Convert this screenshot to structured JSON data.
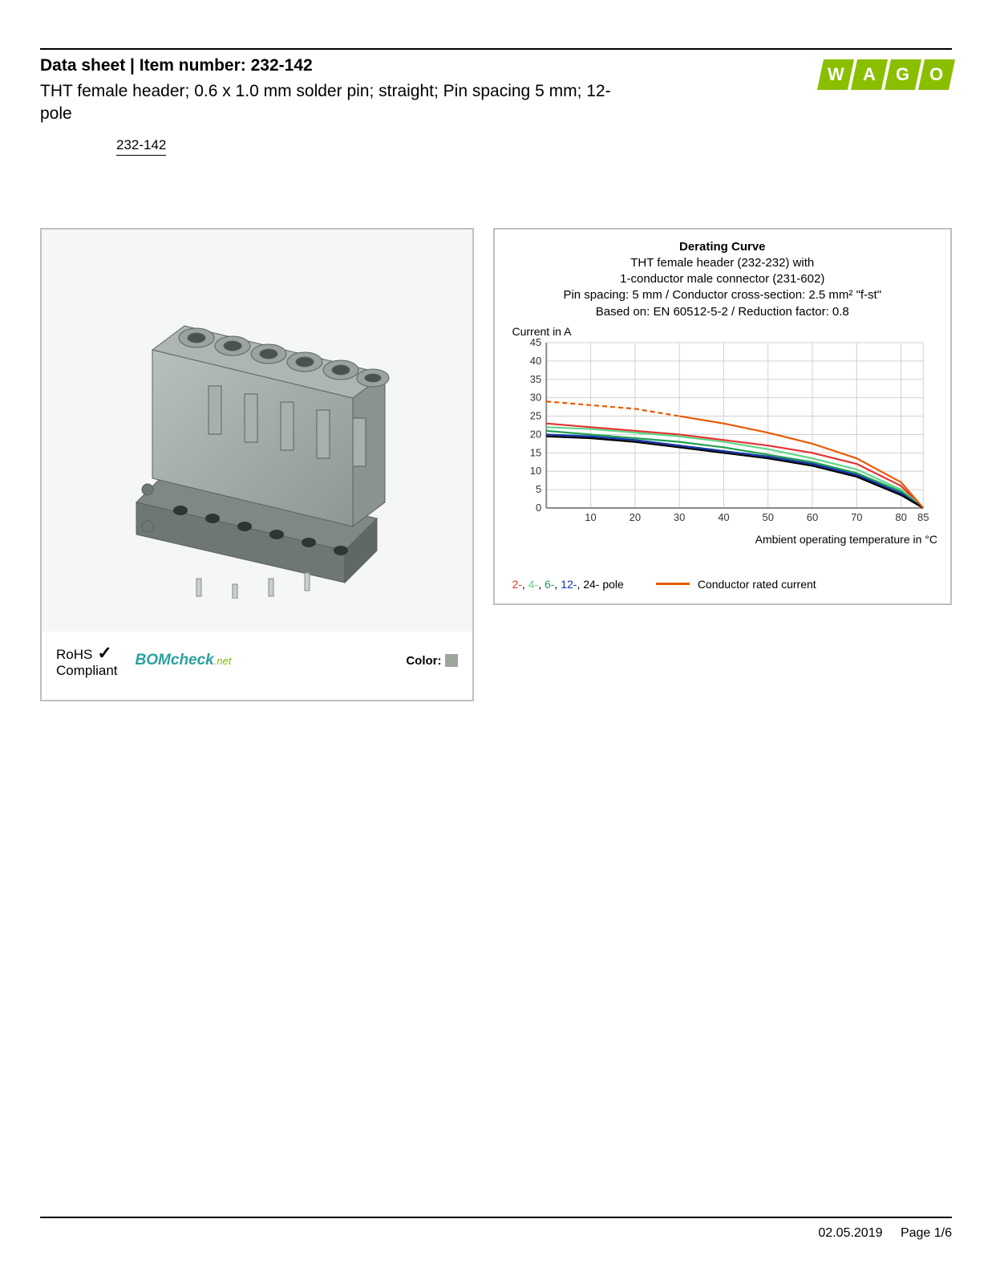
{
  "header": {
    "title_prefix": "Data sheet  |  Item number: ",
    "item_number": "232-142",
    "description": "THT female header; 0.6 x 1.0 mm solder pin; straight; Pin spacing 5 mm; 12-pole",
    "item_number_standalone": "232-142"
  },
  "logo": {
    "text": "WAGO"
  },
  "badges": {
    "rohs": "RoHS",
    "compliant": "Compliant",
    "bomcheck_bom": "BOM",
    "bomcheck_check": "check",
    "bomcheck_net": ".net",
    "color_label": "Color:",
    "color_swatch_hex": "#9da59d"
  },
  "chart": {
    "title": "Derating Curve",
    "line1": "THT female header (232-232) with",
    "line2": "1-conductor male connector (231-602)",
    "line3": "Pin spacing: 5 mm / Conductor cross-section: 2.5 mm² \"f-st\"",
    "line4": "Based on: EN 60512-5-2 / Reduction factor: 0.8",
    "y_axis_label": "Current in A",
    "x_axis_label": "Ambient operating temperature in °C",
    "type": "line",
    "xlim": [
      0,
      85
    ],
    "ylim": [
      0,
      45
    ],
    "x_ticks": [
      10,
      20,
      30,
      40,
      50,
      60,
      70,
      80,
      85
    ],
    "y_ticks": [
      0,
      5,
      10,
      15,
      20,
      25,
      30,
      35,
      40,
      45
    ],
    "grid_color": "#d0d0d0",
    "background_color": "#ffffff",
    "series": [
      {
        "name": "2-pole",
        "color": "#e63232",
        "points": [
          [
            0,
            23
          ],
          [
            10,
            22
          ],
          [
            20,
            21
          ],
          [
            30,
            20
          ],
          [
            40,
            18.5
          ],
          [
            50,
            17
          ],
          [
            60,
            15
          ],
          [
            70,
            12
          ],
          [
            80,
            6
          ],
          [
            85,
            0
          ]
        ]
      },
      {
        "name": "4-pole",
        "color": "#5fd78a",
        "points": [
          [
            0,
            22
          ],
          [
            10,
            21.5
          ],
          [
            20,
            20.5
          ],
          [
            30,
            19.5
          ],
          [
            40,
            18
          ],
          [
            50,
            16
          ],
          [
            60,
            13.5
          ],
          [
            70,
            10.5
          ],
          [
            80,
            5
          ],
          [
            85,
            0
          ]
        ]
      },
      {
        "name": "6-pole",
        "color": "#1ea050",
        "points": [
          [
            0,
            21
          ],
          [
            10,
            20
          ],
          [
            20,
            19
          ],
          [
            30,
            18
          ],
          [
            40,
            16.5
          ],
          [
            50,
            14.5
          ],
          [
            60,
            12.5
          ],
          [
            70,
            9.5
          ],
          [
            80,
            4.5
          ],
          [
            85,
            0
          ]
        ]
      },
      {
        "name": "12-pole",
        "color": "#1030b0",
        "points": [
          [
            0,
            20
          ],
          [
            10,
            19.5
          ],
          [
            20,
            18.5
          ],
          [
            30,
            17
          ],
          [
            40,
            15.5
          ],
          [
            50,
            14
          ],
          [
            60,
            12
          ],
          [
            70,
            9
          ],
          [
            80,
            4
          ],
          [
            85,
            0
          ]
        ]
      },
      {
        "name": "24-pole",
        "color": "#000000",
        "points": [
          [
            0,
            19.5
          ],
          [
            10,
            19
          ],
          [
            20,
            18
          ],
          [
            30,
            16.5
          ],
          [
            40,
            15
          ],
          [
            50,
            13.5
          ],
          [
            60,
            11.5
          ],
          [
            70,
            8.5
          ],
          [
            80,
            3.5
          ],
          [
            85,
            0
          ]
        ]
      },
      {
        "name": "conductor-dashed",
        "color": "#e85a00",
        "dash": "6,4",
        "points": [
          [
            0,
            29
          ],
          [
            10,
            28
          ],
          [
            20,
            27
          ],
          [
            30,
            25
          ]
        ]
      },
      {
        "name": "conductor",
        "color": "#e85a00",
        "points": [
          [
            30,
            25
          ],
          [
            40,
            23
          ],
          [
            50,
            20.5
          ],
          [
            60,
            17.5
          ],
          [
            70,
            13.5
          ],
          [
            80,
            7
          ],
          [
            85,
            0
          ]
        ]
      }
    ],
    "legend": {
      "poles": [
        {
          "label": "2-",
          "color": "#e63232"
        },
        {
          "label": "4-",
          "color": "#5fd78a"
        },
        {
          "label": "6-",
          "color": "#1ea050"
        },
        {
          "label": "12-",
          "color": "#1030b0"
        },
        {
          "label": "24-",
          "color": "#000000"
        }
      ],
      "poles_suffix": " pole",
      "conductor_label": "Conductor rated current",
      "conductor_color": "#e85a00"
    }
  },
  "footer": {
    "date": "02.05.2019",
    "page": "Page 1/6"
  }
}
